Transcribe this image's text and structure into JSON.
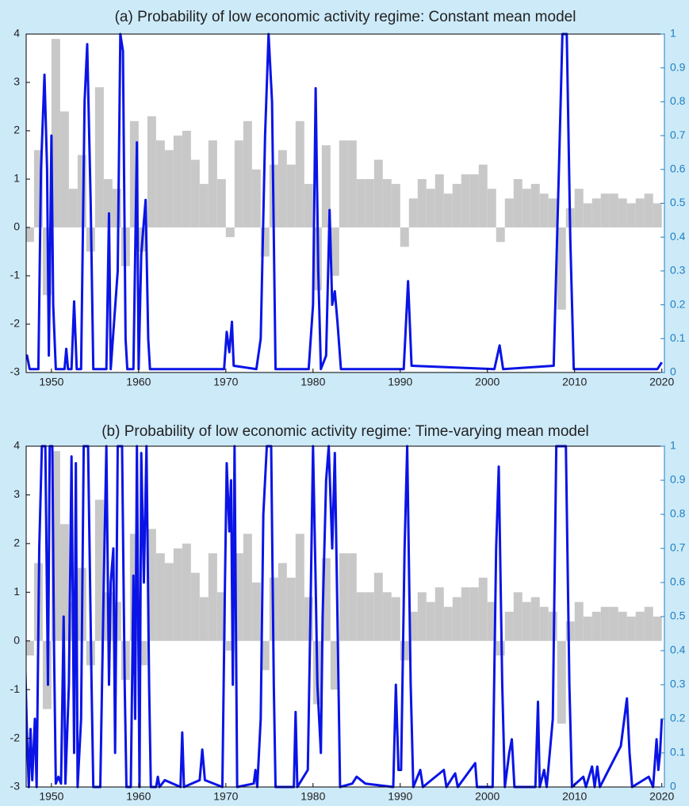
{
  "chart_data": [
    {
      "type": "combo",
      "title": "(a) Probability of low economic activity regime: Constant mean model",
      "xlim": [
        1947.1,
        2020.3
      ],
      "xticks": [
        1950,
        1960,
        1970,
        1980,
        1990,
        2000,
        2010,
        2020
      ],
      "ylim": [
        -3,
        4
      ],
      "yticks": [
        -3,
        -2,
        -1,
        0,
        1,
        2,
        3,
        4
      ],
      "y2lim": [
        0,
        1
      ],
      "y2ticks": [
        0,
        0.1,
        0.2,
        0.3,
        0.4,
        0.5,
        0.6,
        0.7,
        0.8,
        0.9,
        1
      ],
      "series": [
        {
          "type": "bar",
          "color": "#c8c8c8",
          "axis": "y",
          "x": [
            1947,
            1948,
            1949,
            1950,
            1951,
            1952,
            1953,
            1954,
            1955,
            1956,
            1957,
            1958,
            1959,
            1960,
            1961,
            1962,
            1963,
            1964,
            1965,
            1966,
            1967,
            1968,
            1969,
            1970,
            1971,
            1972,
            1973,
            1974,
            1975,
            1976,
            1977,
            1978,
            1979,
            1980,
            1981,
            1982,
            1983,
            1984,
            1985,
            1986,
            1987,
            1988,
            1989,
            1990,
            1991,
            1992,
            1993,
            1994,
            1995,
            1996,
            1997,
            1998,
            1999,
            2000,
            2001,
            2002,
            2003,
            2004,
            2005,
            2006,
            2007,
            2008,
            2009,
            2010,
            2011,
            2012,
            2013,
            2014,
            2015,
            2016,
            2017,
            2018,
            2019
          ],
          "values": [
            -0.3,
            1.6,
            -1.4,
            3.9,
            2.4,
            0.8,
            1.5,
            -0.5,
            2.9,
            1.0,
            0.8,
            -0.8,
            2.2,
            -0.5,
            2.3,
            1.8,
            1.6,
            1.9,
            2.0,
            1.4,
            0.9,
            1.8,
            1.0,
            -0.2,
            1.8,
            2.2,
            1.2,
            -0.6,
            1.3,
            1.6,
            1.3,
            2.2,
            0.9,
            -1.3,
            1.7,
            -1.0,
            1.8,
            1.8,
            1.0,
            1.0,
            1.4,
            1.0,
            0.9,
            -0.4,
            0.6,
            1.0,
            0.8,
            1.1,
            0.7,
            0.9,
            1.1,
            1.1,
            1.3,
            0.8,
            -0.3,
            0.6,
            1.0,
            0.8,
            0.9,
            0.7,
            0.6,
            -1.7,
            0.4,
            0.8,
            0.5,
            0.6,
            0.7,
            0.7,
            0.6,
            0.5,
            0.6,
            0.7,
            0.5
          ]
        },
        {
          "type": "line",
          "color": "#0a14e6",
          "axis": "y2",
          "x": [
            1947.0,
            1947.2,
            1947.5,
            1948.5,
            1948.8,
            1949.2,
            1949.5,
            1949.7,
            1950.0,
            1950.2,
            1950.5,
            1951.5,
            1951.7,
            1951.9,
            1952.3,
            1952.6,
            1952.9,
            1953.4,
            1953.8,
            1954.1,
            1954.5,
            1954.8,
            1956.3,
            1956.6,
            1956.8,
            1957.6,
            1957.9,
            1958.2,
            1958.5,
            1958.7,
            1959.4,
            1959.8,
            1960.0,
            1960.3,
            1960.8,
            1961.1,
            1961.3,
            1969.8,
            1970.1,
            1970.4,
            1970.7,
            1970.9,
            1973.5,
            1974.0,
            1974.5,
            1974.9,
            1975.3,
            1975.7,
            1979.5,
            1980.0,
            1980.3,
            1980.6,
            1980.9,
            1981.5,
            1981.9,
            1982.2,
            1982.5,
            1982.8,
            1983.2,
            1990.4,
            1990.9,
            1991.3,
            2000.8,
            2001.4,
            2001.8,
            2007.6,
            2008.2,
            2008.6,
            2009.1,
            2009.5,
            2009.9,
            2019.5,
            2020.0
          ],
          "values": [
            0.05,
            0.05,
            0.01,
            0.01,
            0.6,
            0.88,
            0.6,
            0.05,
            0.7,
            0.2,
            0.01,
            0.01,
            0.07,
            0.01,
            0.01,
            0.21,
            0.01,
            0.01,
            0.8,
            0.97,
            0.5,
            0.01,
            0.01,
            0.47,
            0.01,
            0.3,
            1,
            0.95,
            0.1,
            0.01,
            0.01,
            0.68,
            0.01,
            0.35,
            0.51,
            0.1,
            0.01,
            0.01,
            0.12,
            0.06,
            0.15,
            0.02,
            0.01,
            0.1,
            0.7,
            1,
            0.8,
            0.01,
            0.01,
            0.2,
            0.84,
            0.3,
            0.01,
            0.05,
            0.48,
            0.2,
            0.24,
            0.15,
            0.01,
            0.01,
            0.27,
            0.02,
            0.01,
            0.08,
            0.01,
            0.02,
            0.6,
            1,
            1,
            0.4,
            0.01,
            0.01,
            0.03
          ]
        }
      ]
    },
    {
      "type": "combo",
      "title": "(b) Probability of low economic activity regime: Time-varying mean model",
      "xlim": [
        1947.1,
        2020.3
      ],
      "xticks": [
        1950,
        1960,
        1970,
        1980,
        1990,
        2000,
        2010,
        2020
      ],
      "ylim": [
        -3,
        4
      ],
      "yticks": [
        -3,
        -2,
        -1,
        0,
        1,
        2,
        3,
        4
      ],
      "y2lim": [
        0,
        1
      ],
      "y2ticks": [
        0,
        0.1,
        0.2,
        0.3,
        0.4,
        0.5,
        0.6,
        0.7,
        0.8,
        0.9,
        1
      ],
      "series": [
        {
          "type": "bar",
          "color": "#c8c8c8",
          "axis": "y",
          "x": [
            1947,
            1948,
            1949,
            1950,
            1951,
            1952,
            1953,
            1954,
            1955,
            1956,
            1957,
            1958,
            1959,
            1960,
            1961,
            1962,
            1963,
            1964,
            1965,
            1966,
            1967,
            1968,
            1969,
            1970,
            1971,
            1972,
            1973,
            1974,
            1975,
            1976,
            1977,
            1978,
            1979,
            1980,
            1981,
            1982,
            1983,
            1984,
            1985,
            1986,
            1987,
            1988,
            1989,
            1990,
            1991,
            1992,
            1993,
            1994,
            1995,
            1996,
            1997,
            1998,
            1999,
            2000,
            2001,
            2002,
            2003,
            2004,
            2005,
            2006,
            2007,
            2008,
            2009,
            2010,
            2011,
            2012,
            2013,
            2014,
            2015,
            2016,
            2017,
            2018,
            2019
          ],
          "values": [
            -0.3,
            1.6,
            -1.4,
            3.9,
            2.4,
            0.8,
            1.5,
            -0.5,
            2.9,
            1.0,
            0.8,
            -0.8,
            2.2,
            -0.5,
            2.3,
            1.8,
            1.6,
            1.9,
            2.0,
            1.4,
            0.9,
            1.8,
            1.0,
            -0.2,
            1.8,
            2.2,
            1.2,
            -0.6,
            1.3,
            1.6,
            1.3,
            2.2,
            0.9,
            -1.3,
            1.7,
            -1.0,
            1.8,
            1.8,
            1.0,
            1.0,
            1.4,
            1.0,
            0.9,
            -0.4,
            0.6,
            1.0,
            0.8,
            1.1,
            0.7,
            0.9,
            1.1,
            1.1,
            1.3,
            0.8,
            -0.3,
            0.6,
            1.0,
            0.8,
            0.9,
            0.7,
            0.6,
            -1.7,
            0.4,
            0.8,
            0.5,
            0.6,
            0.7,
            0.7,
            0.6,
            0.5,
            0.6,
            0.7,
            0.5
          ]
        },
        {
          "type": "line",
          "color": "#0a14e6",
          "axis": "y2",
          "x": [
            1947.0,
            1947.2,
            1947.4,
            1947.6,
            1947.8,
            1948.1,
            1948.3,
            1948.6,
            1948.9,
            1949.3,
            1949.6,
            1949.8,
            1950.1,
            1950.3,
            1950.5,
            1950.8,
            1951.1,
            1951.4,
            1951.6,
            1952.0,
            1952.3,
            1952.6,
            1952.8,
            1953.0,
            1953.4,
            1953.7,
            1954.2,
            1954.6,
            1954.8,
            1955.6,
            1956.0,
            1956.3,
            1956.6,
            1956.8,
            1957.1,
            1957.3,
            1957.6,
            1958.1,
            1958.4,
            1958.6,
            1959.1,
            1959.4,
            1959.6,
            1959.8,
            1960.1,
            1960.3,
            1960.6,
            1960.9,
            1961.2,
            1961.4,
            1962.0,
            1962.2,
            1962.4,
            1963.0,
            1964.8,
            1965.0,
            1965.2,
            1967.0,
            1967.3,
            1967.6,
            1969.6,
            1969.9,
            1970.1,
            1970.4,
            1970.6,
            1970.8,
            1971.0,
            1971.3,
            1973.2,
            1973.4,
            1973.6,
            1974.0,
            1974.3,
            1974.7,
            1975.2,
            1975.5,
            1975.7,
            1977.8,
            1978.0,
            1978.2,
            1979.4,
            1979.7,
            1980.0,
            1980.3,
            1980.5,
            1980.9,
            1981.1,
            1981.5,
            1981.8,
            1982.2,
            1982.5,
            1982.8,
            1983.1,
            1984.5,
            1985.0,
            1986.0,
            1989.2,
            1989.5,
            1989.8,
            1990.1,
            1990.5,
            1990.8,
            1991.2,
            1991.5,
            1992.3,
            1992.6,
            1995.0,
            1995.3,
            1996.3,
            1996.6,
            1998.6,
            1998.8,
            2000.6,
            2001.0,
            2001.3,
            2001.7,
            2002.0,
            2002.5,
            2002.8,
            2003.1,
            2005.5,
            2005.8,
            2006.0,
            2006.5,
            2006.8,
            2007.5,
            2007.9,
            2009.0,
            2009.4,
            2009.7,
            2011.0,
            2011.3,
            2012.0,
            2012.3,
            2012.6,
            2012.9,
            2015.3,
            2015.7,
            2016.0,
            2016.3,
            2016.6,
            2018.5,
            2019.0,
            2019.4,
            2019.6,
            2019.8,
            2020.0
          ],
          "values": [
            0.35,
            0.15,
            0,
            0.17,
            0.02,
            0.2,
            0,
            0.7,
            1,
            1,
            0.3,
            1,
            1,
            0.4,
            0.01,
            0.03,
            0.01,
            0.5,
            0.01,
            0.3,
            0.97,
            0.1,
            0.95,
            0,
            0.2,
            1,
            1,
            0.3,
            0,
            0,
            0.6,
            1,
            0.3,
            0.6,
            0.7,
            0.1,
            1,
            1,
            0.3,
            0,
            0,
            0.62,
            0.2,
            1,
            0,
            0.98,
            0.6,
            1,
            0.3,
            0,
            0,
            0.03,
            0,
            0.02,
            0,
            0.16,
            0,
            0.02,
            0.11,
            0.02,
            0,
            0.6,
            0.95,
            0.75,
            0.9,
            0.3,
            1,
            0,
            0.01,
            0.05,
            0,
            0.2,
            0.8,
            1,
            1,
            0.3,
            0,
            0,
            0.22,
            0,
            0.05,
            0.5,
            1,
            0.6,
            0.3,
            0.1,
            0.5,
            0.9,
            1,
            0.7,
            0.98,
            0.5,
            0,
            0.01,
            0.03,
            0.01,
            0,
            0.3,
            0.05,
            0.05,
            0.7,
            1,
            0.3,
            0,
            0.05,
            0,
            0.05,
            0,
            0.04,
            0,
            0.07,
            0,
            0,
            0.7,
            0.94,
            0.3,
            0,
            0.1,
            0.14,
            0,
            0,
            0.25,
            0,
            0.05,
            0,
            0.2,
            1,
            1,
            0.3,
            0,
            0.03,
            0,
            0.06,
            0,
            0.06,
            0,
            0.12,
            0.2,
            0.26,
            0.1,
            0,
            0.03,
            0,
            0.14,
            0.05,
            0.1,
            0.2
          ]
        }
      ]
    }
  ]
}
